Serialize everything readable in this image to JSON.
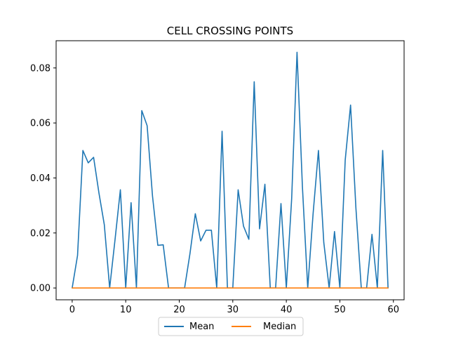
{
  "chart_data": {
    "type": "line",
    "title": "CELL CROSSING POINTS",
    "xlabel": "",
    "ylabel": "",
    "x": [
      0,
      1,
      2,
      3,
      4,
      5,
      6,
      7,
      8,
      9,
      10,
      11,
      12,
      13,
      14,
      15,
      16,
      17,
      18,
      19,
      20,
      21,
      22,
      23,
      24,
      25,
      26,
      27,
      28,
      29,
      30,
      31,
      32,
      33,
      34,
      35,
      36,
      37,
      38,
      39,
      40,
      41,
      42,
      43,
      44,
      45,
      46,
      47,
      48,
      49,
      50,
      51,
      52,
      53,
      54,
      55,
      56,
      57,
      58,
      59
    ],
    "xlim": [
      -3.0,
      62.0
    ],
    "ylim": [
      -0.0043,
      0.0899
    ],
    "xticks": [
      0,
      10,
      20,
      30,
      40,
      50,
      60
    ],
    "xtick_labels": [
      "0",
      "10",
      "20",
      "30",
      "40",
      "50",
      "60"
    ],
    "yticks": [
      0.0,
      0.02,
      0.04,
      0.06,
      0.08
    ],
    "ytick_labels": [
      "0.00",
      "0.02",
      "0.04",
      "0.06",
      "0.08"
    ],
    "grid": false,
    "legend_position": "bottom-center",
    "series": [
      {
        "name": "Mean",
        "color": "#1f77b4",
        "values": [
          0.0,
          0.0118,
          0.05,
          0.0455,
          0.0475,
          0.0345,
          0.023,
          0.0,
          0.0175,
          0.0357,
          0.0,
          0.031,
          0.0,
          0.0645,
          0.059,
          0.0335,
          0.0155,
          0.0157,
          0.0,
          0.0,
          0.0,
          0.0,
          0.0125,
          0.027,
          0.0171,
          0.021,
          0.021,
          0.0,
          0.057,
          0.0,
          0.0,
          0.0357,
          0.0225,
          0.0177,
          0.075,
          0.0215,
          0.0377,
          0.0,
          0.0,
          0.0307,
          0.0,
          0.0325,
          0.0857,
          0.037,
          0.0,
          0.027,
          0.05,
          0.0165,
          0.0,
          0.0205,
          0.0,
          0.0465,
          0.0665,
          0.029,
          0.0,
          0.0,
          0.0195,
          0.0,
          0.05,
          0.0
        ]
      },
      {
        "name": "Median",
        "color": "#ff7f0e",
        "values": [
          0.0,
          0.0,
          0.0,
          0.0,
          0.0,
          0.0,
          0.0,
          0.0,
          0.0,
          0.0,
          0.0,
          0.0,
          0.0,
          0.0,
          0.0,
          0.0,
          0.0,
          0.0,
          0.0,
          0.0,
          0.0,
          0.0,
          0.0,
          0.0,
          0.0,
          0.0,
          0.0,
          0.0,
          0.0,
          0.0,
          0.0,
          0.0,
          0.0,
          0.0,
          0.0,
          0.0,
          0.0,
          0.0,
          0.0,
          0.0,
          0.0,
          0.0,
          0.0,
          0.0,
          0.0,
          0.0,
          0.0,
          0.0,
          0.0,
          0.0,
          0.0,
          0.0,
          0.0,
          0.0,
          0.0,
          0.0,
          0.0,
          0.0,
          0.0,
          0.0
        ]
      }
    ]
  }
}
